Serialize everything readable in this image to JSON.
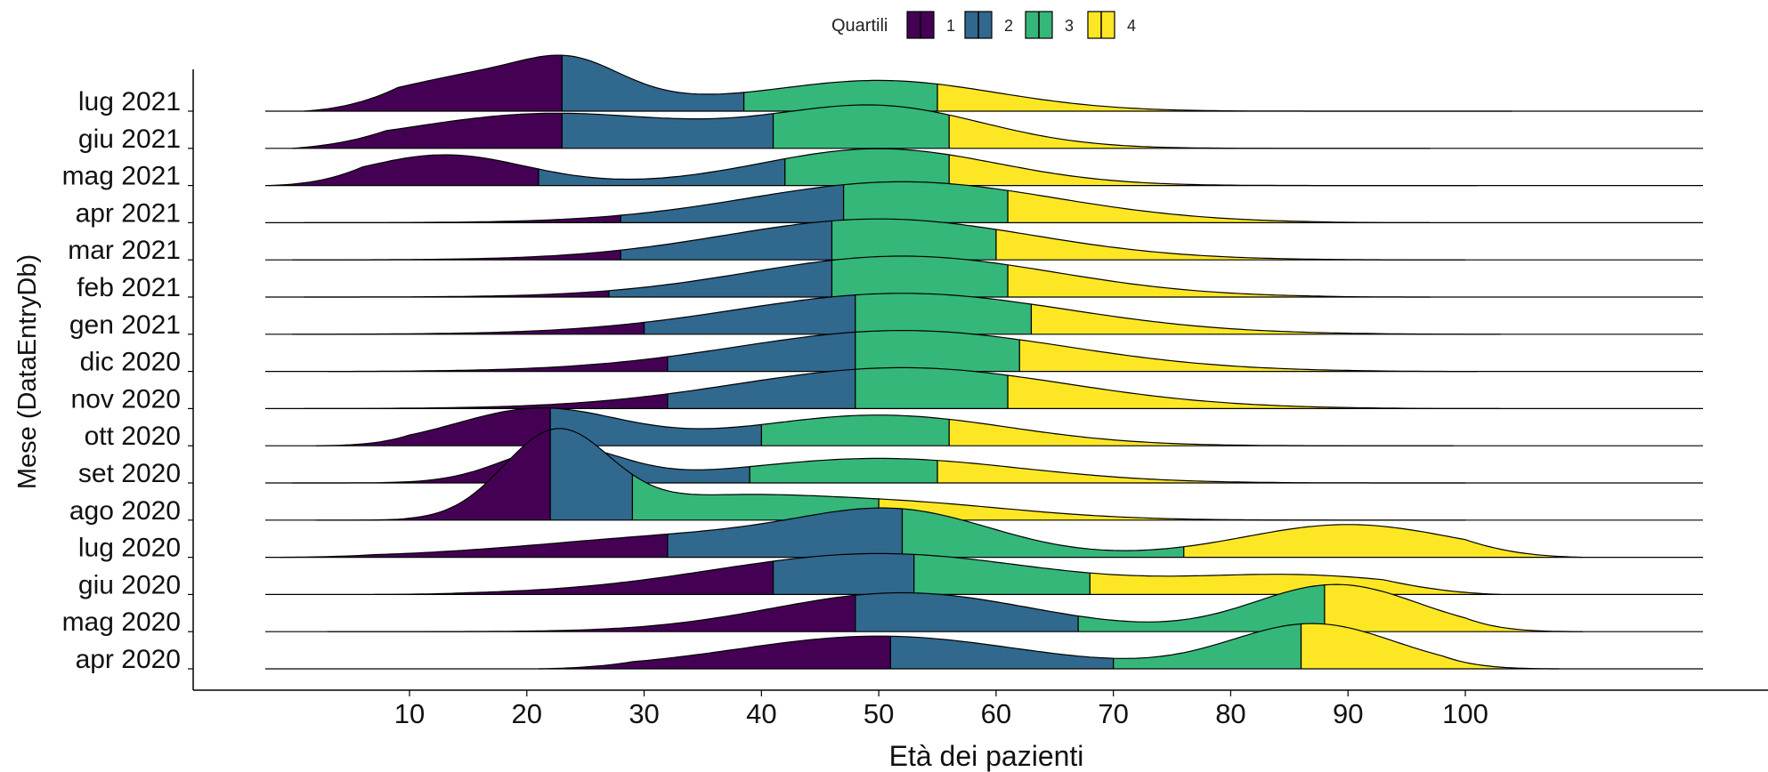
{
  "chart_data": {
    "type": "ridgeline",
    "xlabel": "Età dei pazienti",
    "ylabel": "Mese (DataEntryDb)",
    "xticks": [
      10,
      20,
      30,
      40,
      50,
      60,
      70,
      80,
      90,
      100
    ],
    "xlim": [
      -14,
      126
    ],
    "grid": false,
    "legend": {
      "title": "Quartili",
      "position": "top",
      "entries": [
        "1",
        "2",
        "3",
        "4"
      ]
    },
    "quartile_colors": [
      "#440154",
      "#31688e",
      "#35b779",
      "#fde725"
    ],
    "months": [
      {
        "label": "lug 2021",
        "baseline_range": [
          -7,
          119
        ],
        "tail_range": [
          1,
          104
        ],
        "quartiles": [
          23,
          38.5,
          55
        ],
        "peaks": [
          [
            18,
            0.95,
            9
          ],
          [
            24,
            0.55,
            4
          ],
          [
            50,
            0.75,
            10
          ]
        ]
      },
      {
        "label": "giu 2021",
        "baseline_range": [
          -7,
          119
        ],
        "tail_range": [
          0,
          97
        ],
        "quartiles": [
          23,
          41,
          56
        ],
        "peaks": [
          [
            22,
            0.85,
            12
          ],
          [
            50,
            1.0,
            9
          ]
        ]
      },
      {
        "label": "mag 2021",
        "baseline_range": [
          -7,
          119
        ],
        "tail_range": [
          -2,
          101
        ],
        "quartiles": [
          21,
          42,
          56
        ],
        "peaks": [
          [
            13,
            0.75,
            7
          ],
          [
            50,
            0.9,
            10
          ]
        ]
      },
      {
        "label": "apr 2021",
        "baseline_range": [
          -7,
          119
        ],
        "tail_range": [
          1,
          97
        ],
        "quartiles": [
          28,
          47,
          61
        ],
        "peaks": [
          [
            52,
            1.0,
            13
          ]
        ]
      },
      {
        "label": "mar 2021",
        "baseline_range": [
          -7,
          119
        ],
        "tail_range": [
          0,
          100
        ],
        "quartiles": [
          28,
          46,
          60
        ],
        "peaks": [
          [
            50,
            1.0,
            13
          ]
        ]
      },
      {
        "label": "feb 2021",
        "baseline_range": [
          -7,
          119
        ],
        "tail_range": [
          1,
          97
        ],
        "quartiles": [
          27,
          46,
          61
        ],
        "peaks": [
          [
            52,
            1.0,
            13
          ]
        ]
      },
      {
        "label": "gen 2021",
        "baseline_range": [
          -7,
          119
        ],
        "tail_range": [
          0,
          103
        ],
        "quartiles": [
          30,
          48,
          63
        ],
        "peaks": [
          [
            52,
            1.0,
            14
          ]
        ]
      },
      {
        "label": "dic 2020",
        "baseline_range": [
          -7,
          119
        ],
        "tail_range": [
          3,
          101
        ],
        "quartiles": [
          32,
          48,
          62
        ],
        "peaks": [
          [
            52,
            1.0,
            14
          ]
        ]
      },
      {
        "label": "nov 2020",
        "baseline_range": [
          -7,
          119
        ],
        "tail_range": [
          1,
          103
        ],
        "quartiles": [
          32,
          48,
          61
        ],
        "peaks": [
          [
            52,
            1.0,
            14
          ]
        ]
      },
      {
        "label": "ott 2020",
        "baseline_range": [
          -7,
          119
        ],
        "tail_range": [
          2,
          99
        ],
        "quartiles": [
          22,
          40,
          56
        ],
        "peaks": [
          [
            21,
            0.9,
            7
          ],
          [
            50,
            0.75,
            11
          ]
        ]
      },
      {
        "label": "set 2020",
        "baseline_range": [
          -7,
          119
        ],
        "tail_range": [
          0,
          100
        ],
        "quartiles": [
          24,
          39,
          55
        ],
        "peaks": [
          [
            23,
            0.85,
            5
          ],
          [
            50,
            0.6,
            12
          ]
        ]
      },
      {
        "label": "ago 2020",
        "baseline_range": [
          -7,
          119
        ],
        "tail_range": [
          2,
          100
        ],
        "quartiles": [
          22,
          29,
          50
        ],
        "peaks": [
          [
            22.5,
            2.1,
            4.5
          ],
          [
            35,
            0.4,
            8
          ],
          [
            50,
            0.45,
            11
          ]
        ]
      },
      {
        "label": "lug 2020",
        "baseline_range": [
          -7,
          119
        ],
        "tail_range": [
          -1,
          110
        ],
        "quartiles": [
          32,
          52,
          76
        ],
        "peaks": [
          [
            36,
            0.55,
            14
          ],
          [
            52,
            0.9,
            8
          ],
          [
            90,
            0.8,
            9
          ]
        ]
      },
      {
        "label": "giu 2020",
        "baseline_range": [
          -7,
          119
        ],
        "tail_range": [
          7,
          103
        ],
        "quartiles": [
          41,
          53,
          68
        ],
        "peaks": [
          [
            50,
            1.0,
            14
          ],
          [
            86,
            0.45,
            10
          ]
        ]
      },
      {
        "label": "mag 2020",
        "baseline_range": [
          -7,
          119
        ],
        "tail_range": [
          3,
          110
        ],
        "quartiles": [
          48,
          67,
          88
        ],
        "peaks": [
          [
            52,
            0.95,
            11
          ],
          [
            89,
            1.15,
            7
          ]
        ]
      },
      {
        "label": "apr 2020",
        "baseline_range": [
          -7,
          119
        ],
        "tail_range": [
          21,
          108
        ],
        "quartiles": [
          51,
          70,
          86
        ],
        "peaks": [
          [
            50,
            0.8,
            12
          ],
          [
            87,
            1.1,
            7
          ]
        ]
      }
    ]
  }
}
